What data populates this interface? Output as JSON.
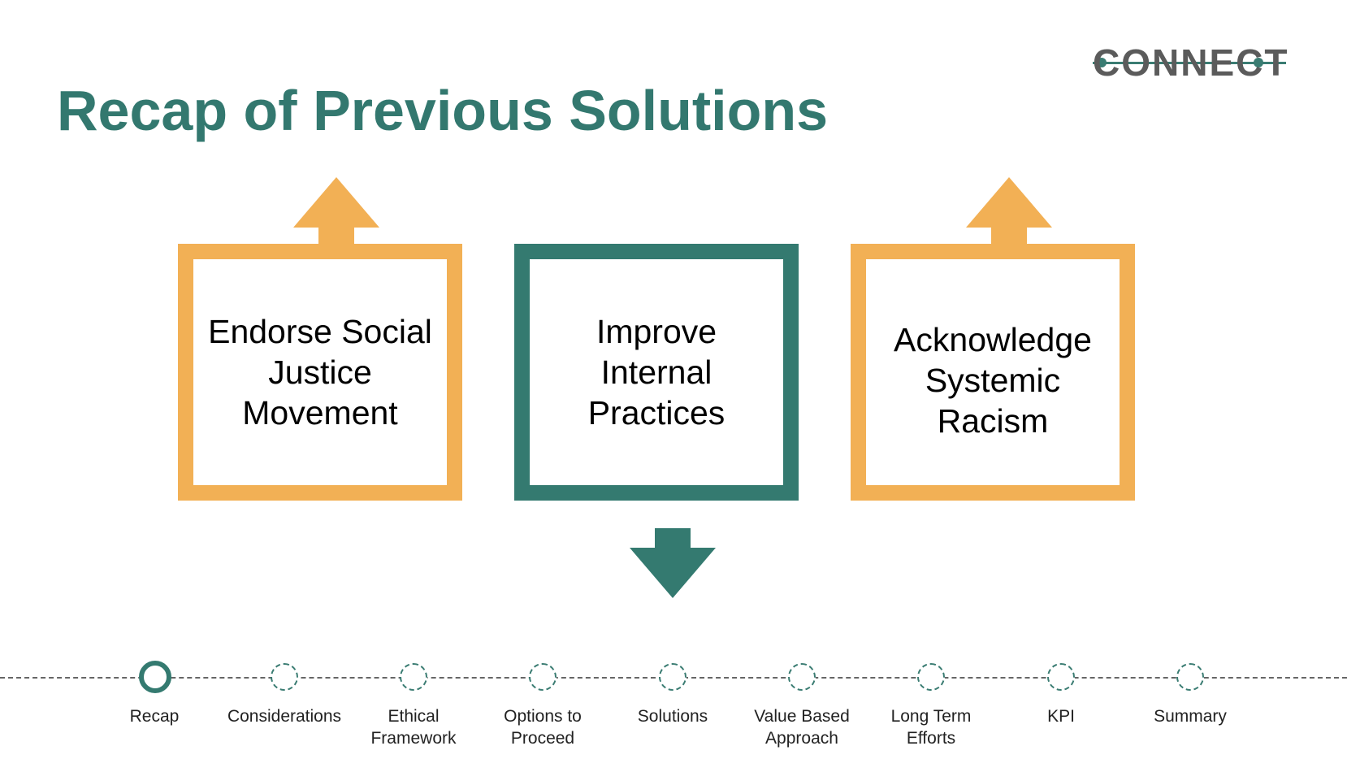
{
  "logo": {
    "text": "CONNECT"
  },
  "title": "Recap of Previous Solutions",
  "boxes": [
    {
      "label": "Endorse Social\nJustice\nMovement",
      "color": "#f2b055",
      "arrow": "up"
    },
    {
      "label": "Improve\nInternal\nPractices",
      "color": "#347a70",
      "arrow": "down"
    },
    {
      "label": "Acknowledge\nSystemic\nRacism",
      "color": "#f2b055",
      "arrow": "up"
    }
  ],
  "timeline": {
    "active_index": 0,
    "steps": [
      {
        "label": "Recap"
      },
      {
        "label": "Considerations"
      },
      {
        "label": "Ethical\nFramework"
      },
      {
        "label": "Options to\nProceed"
      },
      {
        "label": "Solutions"
      },
      {
        "label": "Value Based\nApproach"
      },
      {
        "label": "Long Term\nEfforts"
      },
      {
        "label": "KPI"
      },
      {
        "label": "Summary"
      }
    ]
  },
  "colors": {
    "teal": "#347a70",
    "orange": "#f2b055",
    "logo_gray": "#5b5b5b"
  }
}
